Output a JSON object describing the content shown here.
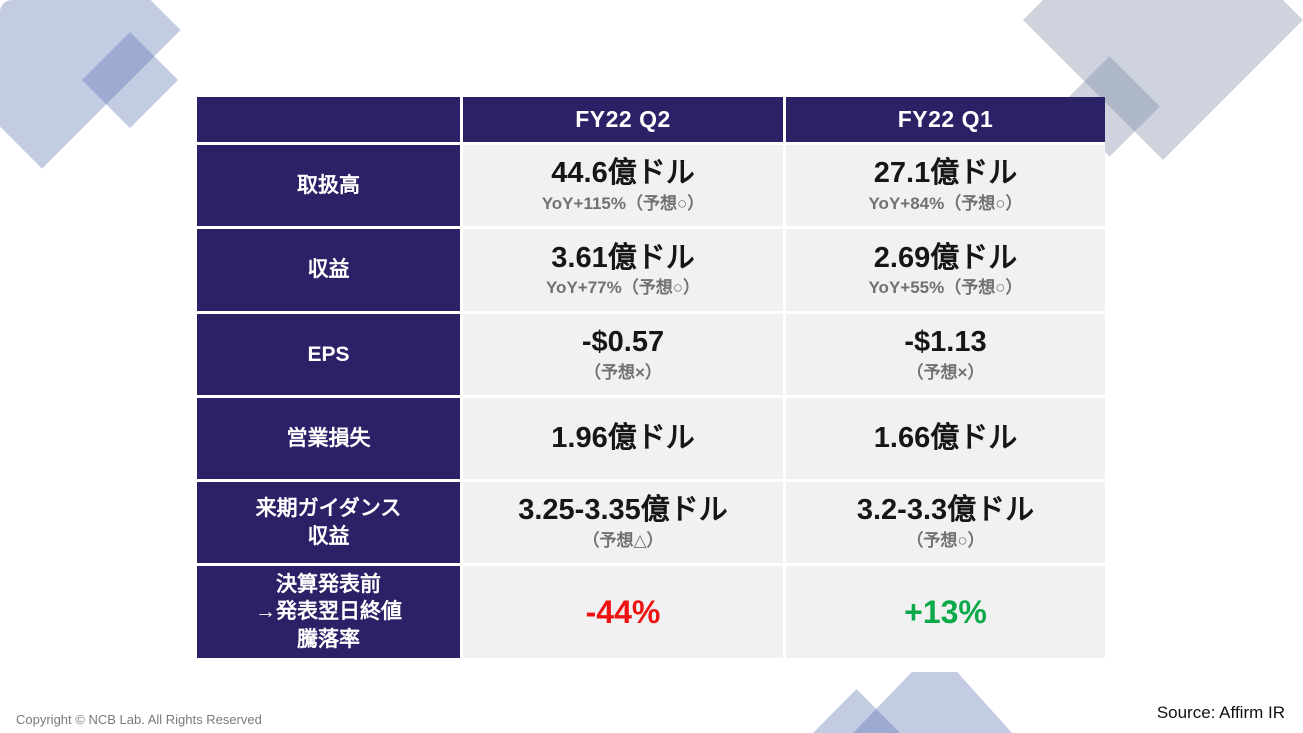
{
  "colors": {
    "table_navy": "#2a2167",
    "cell_bg": "#f1f1f2",
    "value_text": "#161616",
    "sub_text": "#717171",
    "negative_red": "#ee1212",
    "positive_green": "#0ca94a",
    "deco_periwinkle": "rgba(86,108,178,0.35)",
    "deco_gray_blue": "rgba(125,140,168,0.38)"
  },
  "table": {
    "columns": [
      "",
      "FY22 Q2",
      "FY22 Q1"
    ],
    "rows": [
      {
        "label": "取扱高",
        "cells": [
          {
            "value": "44.6億ドル",
            "sub": "YoY+115%（予想○）"
          },
          {
            "value": "27.1億ドル",
            "sub": "YoY+84%（予想○）"
          }
        ]
      },
      {
        "label": "収益",
        "cells": [
          {
            "value": "3.61億ドル",
            "sub": "YoY+77%（予想○）"
          },
          {
            "value": "2.69億ドル",
            "sub": "YoY+55%（予想○）"
          }
        ]
      },
      {
        "label": "EPS",
        "cells": [
          {
            "value": "-$0.57",
            "sub": "（予想×）"
          },
          {
            "value": "-$1.13",
            "sub": "（予想×）"
          }
        ]
      },
      {
        "label": "営業損失",
        "cells": [
          {
            "value": "1.96億ドル"
          },
          {
            "value": "1.66億ドル"
          }
        ]
      },
      {
        "label": "来期ガイダンス\n収益",
        "cells": [
          {
            "value": "3.25-3.35億ドル",
            "sub": "（予想△）"
          },
          {
            "value": "3.2-3.3億ドル",
            "sub": "（予想○）"
          }
        ]
      },
      {
        "label": "決算発表前\n→発表翌日終値\n騰落率",
        "cells": [
          {
            "value": "-44%",
            "color": "#ee1212"
          },
          {
            "value": "+13%",
            "color": "#0ca94a"
          }
        ]
      }
    ]
  },
  "footer": {
    "copyright": "Copyright © NCB Lab. All Rights Reserved",
    "source": "Source: Affirm IR"
  }
}
